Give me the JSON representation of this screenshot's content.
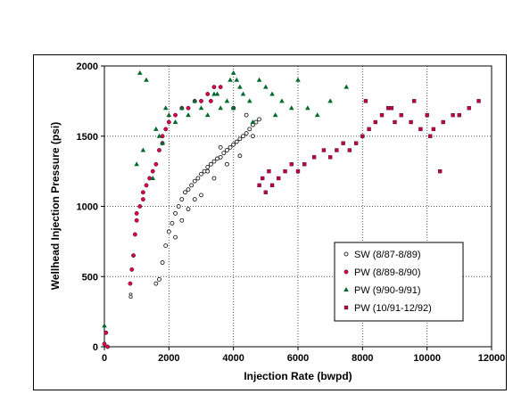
{
  "chart_data": {
    "type": "scatter",
    "xlabel": "Injection Rate (bwpd)",
    "ylabel": "Wellhead Injection Pressure (psi)",
    "xlim": [
      0,
      12000
    ],
    "ylim": [
      0,
      2000
    ],
    "xticks": [
      0,
      2000,
      4000,
      6000,
      8000,
      10000,
      12000
    ],
    "yticks": [
      0,
      500,
      1000,
      1500,
      2000
    ],
    "grid": "dotted",
    "legend_position": "lower-right",
    "annotation": "8",
    "series": [
      {
        "name": "SW (8/87-8/89)",
        "marker": "open-circle",
        "color": "#000000",
        "x": [
          1700,
          1800,
          1900,
          2000,
          2100,
          2200,
          2300,
          2400,
          2500,
          2600,
          2700,
          2800,
          2900,
          3000,
          3100,
          3200,
          3300,
          3400,
          3500,
          3600,
          3700,
          3800,
          3900,
          4000,
          4100,
          4200,
          4300,
          4400,
          4500,
          4600,
          4700,
          4800,
          2200,
          2600,
          3000,
          3400,
          3800,
          4200,
          4600,
          2400,
          2800,
          3200,
          3600,
          4000,
          4400,
          1600
        ],
        "y": [
          480,
          600,
          720,
          820,
          880,
          950,
          1000,
          1050,
          1100,
          1120,
          1150,
          1180,
          1200,
          1230,
          1250,
          1280,
          1300,
          1320,
          1340,
          1350,
          1380,
          1400,
          1420,
          1440,
          1460,
          1480,
          1500,
          1520,
          1550,
          1580,
          1600,
          1620,
          780,
          980,
          1080,
          1200,
          1300,
          1360,
          1500,
          900,
          1050,
          1250,
          1420,
          1700,
          1650,
          450
        ]
      },
      {
        "name": "PW (8/89-8/90)",
        "marker": "filled-circle",
        "color": "#e0004a",
        "x": [
          0,
          50,
          100,
          800,
          850,
          900,
          950,
          1000,
          1100,
          1200,
          1300,
          1400,
          1500,
          1600,
          1700,
          1800,
          1900,
          2000,
          2200,
          2400,
          2600,
          2800,
          3000,
          3200,
          3400,
          3600,
          1000,
          1200,
          1800,
          3300
        ],
        "y": [
          20,
          100,
          0,
          450,
          550,
          650,
          800,
          950,
          1000,
          1050,
          1150,
          1200,
          1250,
          1300,
          1400,
          1500,
          1550,
          1600,
          1650,
          1700,
          1700,
          1750,
          1750,
          1800,
          1850,
          1850,
          900,
          1100,
          1450,
          1750
        ]
      },
      {
        "name": "PW (9/90-9/91)",
        "marker": "triangle",
        "color": "#006a2e",
        "x": [
          0,
          1100,
          1300,
          1500,
          1700,
          1900,
          2000,
          2200,
          2400,
          2600,
          2800,
          3000,
          3200,
          3400,
          3600,
          3800,
          4000,
          4100,
          4200,
          4300,
          4500,
          4800,
          5000,
          5200,
          5500,
          5800,
          6000,
          6300,
          6600,
          7000,
          7500,
          1000,
          1200,
          1600,
          1800,
          3500,
          3900,
          4000,
          4600,
          5300
        ],
        "y": [
          150,
          1950,
          1900,
          1200,
          1500,
          1700,
          1650,
          1600,
          1700,
          1650,
          1750,
          1700,
          1650,
          1800,
          1700,
          1750,
          1950,
          1900,
          1850,
          1800,
          1750,
          1900,
          1850,
          1800,
          1750,
          1700,
          1900,
          1700,
          1650,
          1750,
          1850,
          1300,
          1400,
          1550,
          1450,
          1800,
          1900,
          1700,
          1600,
          1650
        ]
      },
      {
        "name": "PW (10/91-12/92)",
        "marker": "filled-square",
        "color": "#c0004a",
        "x": [
          4800,
          4900,
          5000,
          5100,
          5200,
          5400,
          5600,
          5800,
          6000,
          6200,
          6500,
          6800,
          7000,
          7200,
          7400,
          7600,
          7800,
          8000,
          8200,
          8400,
          8600,
          8800,
          9000,
          9200,
          9500,
          9800,
          10000,
          10200,
          10500,
          10800,
          11000,
          11300,
          11600,
          8100,
          8900,
          9600,
          10100,
          10400
        ],
        "y": [
          1150,
          1200,
          1100,
          1250,
          1150,
          1200,
          1250,
          1300,
          1250,
          1300,
          1350,
          1400,
          1350,
          1400,
          1450,
          1400,
          1450,
          1500,
          1550,
          1600,
          1650,
          1700,
          1600,
          1650,
          1600,
          1550,
          1650,
          1550,
          1600,
          1650,
          1650,
          1700,
          1750,
          1750,
          1700,
          1750,
          1500,
          1250
        ]
      }
    ]
  }
}
